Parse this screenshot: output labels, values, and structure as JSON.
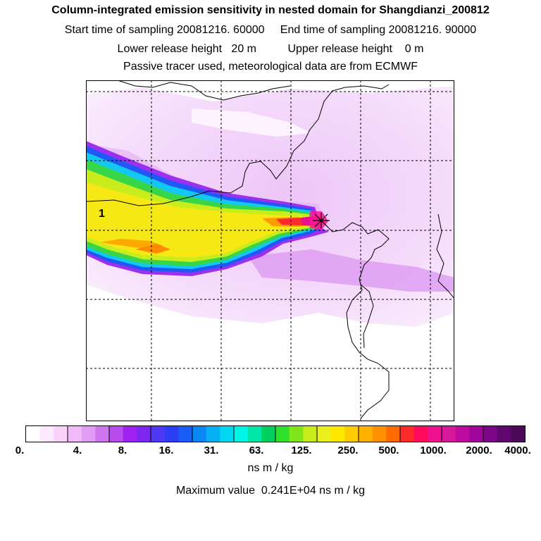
{
  "header": {
    "title": "Column-integrated emission sensitivity in nested domain for Shangdianzi_200812",
    "line1": "Start time of sampling 20081216. 60000     End time of sampling 20081216. 90000",
    "line2": "Lower release height   20 m          Upper release height    0 m",
    "line3": "Passive tracer used, meteorological data are from ECMWF"
  },
  "map": {
    "site_label": "1",
    "site_marker": "x-marker-icon"
  },
  "colorbar": {
    "colors": [
      "#ffffff",
      "#fde9fd",
      "#f8d2fb",
      "#f0bbf8",
      "#e19cf3",
      "#cf76ee",
      "#b84ced",
      "#a020f0",
      "#7b27f0",
      "#5036f5",
      "#2d3cf5",
      "#1a5cf6",
      "#0b86f5",
      "#05b0f3",
      "#00d8f0",
      "#00f5e4",
      "#00e6a6",
      "#00d05e",
      "#2ee02a",
      "#80e61a",
      "#c6ec1a",
      "#eaf01e",
      "#ffe800",
      "#ffcc00",
      "#ffb000",
      "#ff9000",
      "#ff6a00",
      "#ff2a2a",
      "#ff0a5c",
      "#f01090",
      "#d8189a",
      "#bf0aa0",
      "#a0059c",
      "#7e0688",
      "#600870",
      "#4a0a58"
    ],
    "labels": [
      "0.",
      "4.",
      "8.",
      "16.",
      "31.",
      "63.",
      "125.",
      "250.",
      "500.",
      "1000.",
      "2000.",
      "4000."
    ],
    "units": "ns m / kg"
  },
  "footer": {
    "max_value": "Maximum value  0.241E+04 ns m / kg"
  }
}
